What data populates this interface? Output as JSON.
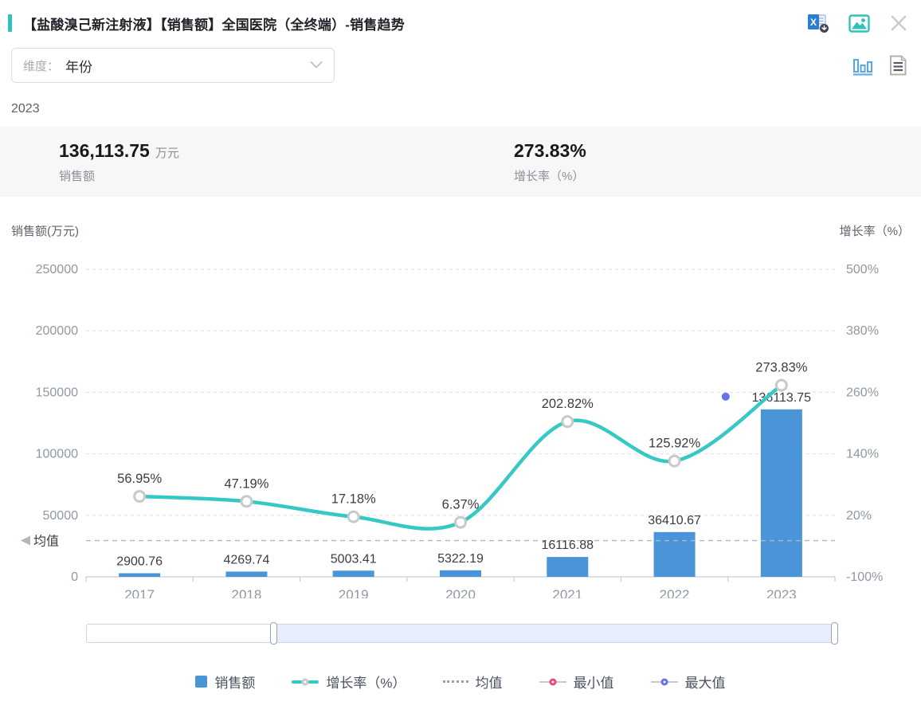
{
  "header": {
    "title": "【盐酸溴己新注射液】【销售额】全国医院（全终端）-销售趋势",
    "icons": [
      "excel-export-icon",
      "image-export-icon",
      "close-icon"
    ]
  },
  "toolbar": {
    "dimension_label": "维度：",
    "dimension_value": "年份",
    "icons": [
      "chevron-down-icon",
      "bar-chart-view-icon",
      "report-view-icon"
    ]
  },
  "selected_year": "2023",
  "summary": {
    "sales_value": "136,113.75",
    "sales_unit": "万元",
    "sales_label": "销售额",
    "growth_value": "273.83%",
    "growth_label": "增长率（%）"
  },
  "chart_data": {
    "type": "combo bar+line, dual y-axis",
    "categories": [
      "2017",
      "2018",
      "2019",
      "2020",
      "2021",
      "2022",
      "2023"
    ],
    "series": [
      {
        "name": "销售额",
        "type": "bar",
        "axis": "left",
        "values": [
          2900.76,
          4269.74,
          5003.41,
          5322.19,
          16116.88,
          36410.67,
          136113.75
        ],
        "labels": [
          "2900.76",
          "4269.74",
          "5003.41",
          "5322.19",
          "16116.88",
          "36410.67",
          "136113.75"
        ]
      },
      {
        "name": "增长率（%）",
        "type": "line",
        "axis": "right",
        "values": [
          56.95,
          47.19,
          17.18,
          6.37,
          202.82,
          125.92,
          273.83
        ],
        "labels": [
          "56.95%",
          "47.19%",
          "17.18%",
          "6.37%",
          "202.82%",
          "125.92%",
          "273.83%"
        ]
      }
    ],
    "left_axis": {
      "name": "销售额(万元)",
      "min": 0,
      "max": 250000,
      "tick_labels": [
        "0",
        "50000",
        "100000",
        "150000",
        "200000",
        "250000"
      ]
    },
    "right_axis": {
      "name": "增长率（%）",
      "min": -100,
      "max": 500,
      "tick_labels": [
        "-100%",
        "20%",
        "140%",
        "260%",
        "380%",
        "500%"
      ]
    },
    "mean": {
      "label": "均值",
      "value": 29448.2
    },
    "max_point": {
      "category": "2023",
      "value": 136113.75
    },
    "legend": [
      "销售额",
      "增长率（%）",
      "均值",
      "最小值",
      "最大值"
    ],
    "grid": "horizontal dashed lines on"
  },
  "slider": {
    "window_start": "25%",
    "window_end": "100%"
  },
  "colors": {
    "accent_teal": "#2fc2bd",
    "line_teal": "#36c8c5",
    "bar_blue": "#4a94d8",
    "max_purple": "#6673e8",
    "min_pink": "#f0447c",
    "axis_gray": "#8f98a3",
    "label_dark": "#3a3d46",
    "axis_name_gray": "#5f6470",
    "grid_line": "#dfe8e8",
    "mean_gray": "#b3b7bd",
    "axis_line": "#c8ccd2"
  }
}
